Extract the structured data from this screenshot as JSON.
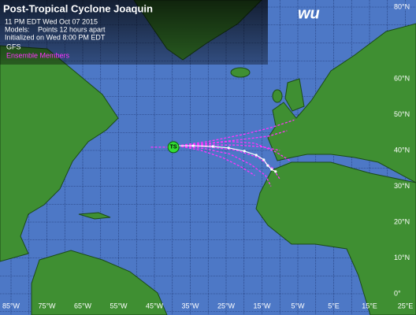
{
  "header": {
    "title": "Post-Tropical Cyclone Joaquin",
    "time": "11 PM EDT Wed Oct 07 2015",
    "models_label": "Models:",
    "points_note": "Points 12 hours apart",
    "initialized": "Initialized on Wed 8:00 PM EDT",
    "gfs_label": "GFS",
    "ensemble_label": "Ensemble Members",
    "logo": "wu"
  },
  "storm": {
    "label": "TS",
    "lon": -39.7,
    "lat": 40.9
  },
  "lon_labels": [
    {
      "value": -85,
      "label": "85°W"
    },
    {
      "value": -75,
      "label": "75°W"
    },
    {
      "value": -65,
      "label": "65°W"
    },
    {
      "value": -55,
      "label": "55°W"
    },
    {
      "value": -45,
      "label": "45°W"
    },
    {
      "value": -35,
      "label": "35°W"
    },
    {
      "value": -25,
      "label": "25°W"
    },
    {
      "value": -15,
      "label": "15°W"
    },
    {
      "value": -5,
      "label": "5°W"
    },
    {
      "value": 5,
      "label": "5°E"
    },
    {
      "value": 15,
      "label": "15°E"
    },
    {
      "value": 25,
      "label": "25°E"
    }
  ],
  "lat_labels": [
    {
      "value": 80,
      "label": "80°N"
    },
    {
      "value": 60,
      "label": "60°N"
    },
    {
      "value": 50,
      "label": "50°N"
    },
    {
      "value": 40,
      "label": "40°N"
    },
    {
      "value": 30,
      "label": "30°N"
    },
    {
      "value": 20,
      "label": "20°N"
    },
    {
      "value": 10,
      "label": "10°N"
    },
    {
      "value": 0,
      "label": "0°"
    }
  ],
  "gfs_track": {
    "lon": [
      -38.6,
      -34.2,
      -28.7,
      -24.3,
      -19.9,
      -16.6,
      -14.5,
      -13.4,
      -12.3,
      -11.2
    ],
    "lat": [
      41.3,
      41.3,
      41.1,
      40.7,
      39.8,
      38.7,
      37.4,
      35.8,
      34.7,
      34.1
    ]
  },
  "ensemble_tracks": [
    {
      "lon": [
        -46,
        -39.7
      ],
      "lat": [
        40.9,
        40.9
      ]
    },
    {
      "lon": [
        -38.6,
        -30,
        -20,
        -12,
        -6
      ],
      "lat": [
        41.3,
        42.5,
        44.5,
        46.5,
        48.5
      ]
    },
    {
      "lon": [
        -38.6,
        -30,
        -21,
        -13,
        -8
      ],
      "lat": [
        41.3,
        42,
        43,
        44,
        45.5
      ]
    },
    {
      "lon": [
        -38.6,
        -30,
        -22,
        -15,
        -10
      ],
      "lat": [
        41.3,
        41.5,
        41.5,
        41,
        40
      ]
    },
    {
      "lon": [
        -38.6,
        -30,
        -22,
        -16,
        -12,
        -10
      ],
      "lat": [
        41.3,
        41,
        40,
        38,
        35,
        32
      ]
    },
    {
      "lon": [
        -38.6,
        -31,
        -24,
        -18,
        -14,
        -12.5
      ],
      "lat": [
        41.3,
        40.5,
        39,
        36,
        33,
        30
      ]
    },
    {
      "lon": [
        -38.6,
        -32,
        -26,
        -21,
        -17
      ],
      "lat": [
        41.3,
        40,
        38,
        35.5,
        33
      ]
    },
    {
      "lon": [
        -38.6,
        -31,
        -24,
        -17,
        -11,
        -7
      ],
      "lat": [
        41.3,
        41.8,
        42.5,
        42,
        39.5,
        37
      ]
    }
  ]
}
